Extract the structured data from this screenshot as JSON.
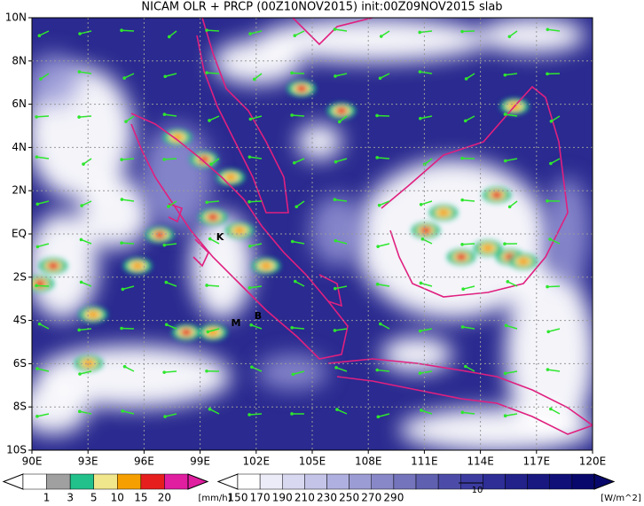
{
  "header": {
    "title": "NICAM OLR + PRCP (00Z10NOV2015) init:00Z09NOV2015 slab"
  },
  "map": {
    "lat_labels": [
      "10N",
      "8N",
      "6N",
      "4N",
      "2N",
      "EQ",
      "2S",
      "4S",
      "6S",
      "8S",
      "10S"
    ],
    "lon_labels": [
      "90E",
      "93E",
      "96E",
      "99E",
      "102E",
      "105E",
      "108E",
      "111E",
      "114E",
      "117E",
      "120E"
    ],
    "annotations": [
      "K",
      "M",
      "B"
    ]
  },
  "colorbars": {
    "precip": {
      "labels": [
        "1",
        "3",
        "5",
        "10",
        "15",
        "20"
      ],
      "unit": "[mm/h]",
      "colors": [
        "#ffffff",
        "#a0a0a0",
        "#22c08a",
        "#f0e68c",
        "#f5a000",
        "#e61e1e",
        "#e01ea0"
      ]
    },
    "olr": {
      "labels": [
        "150",
        "170",
        "190",
        "210",
        "230",
        "250",
        "270",
        "290"
      ],
      "unit": "[W/m^2]",
      "colors": [
        "#ffffff",
        "#ececf8",
        "#d8d8f0",
        "#c4c4e8",
        "#b0b0e0",
        "#9c9cd4",
        "#8888c8",
        "#7474bc",
        "#6060b0",
        "#4c4ca8",
        "#3c3ca0",
        "#2e2e96",
        "#22228a",
        "#181880",
        "#101078",
        "#08086c"
      ]
    },
    "vector_label": "10"
  }
}
